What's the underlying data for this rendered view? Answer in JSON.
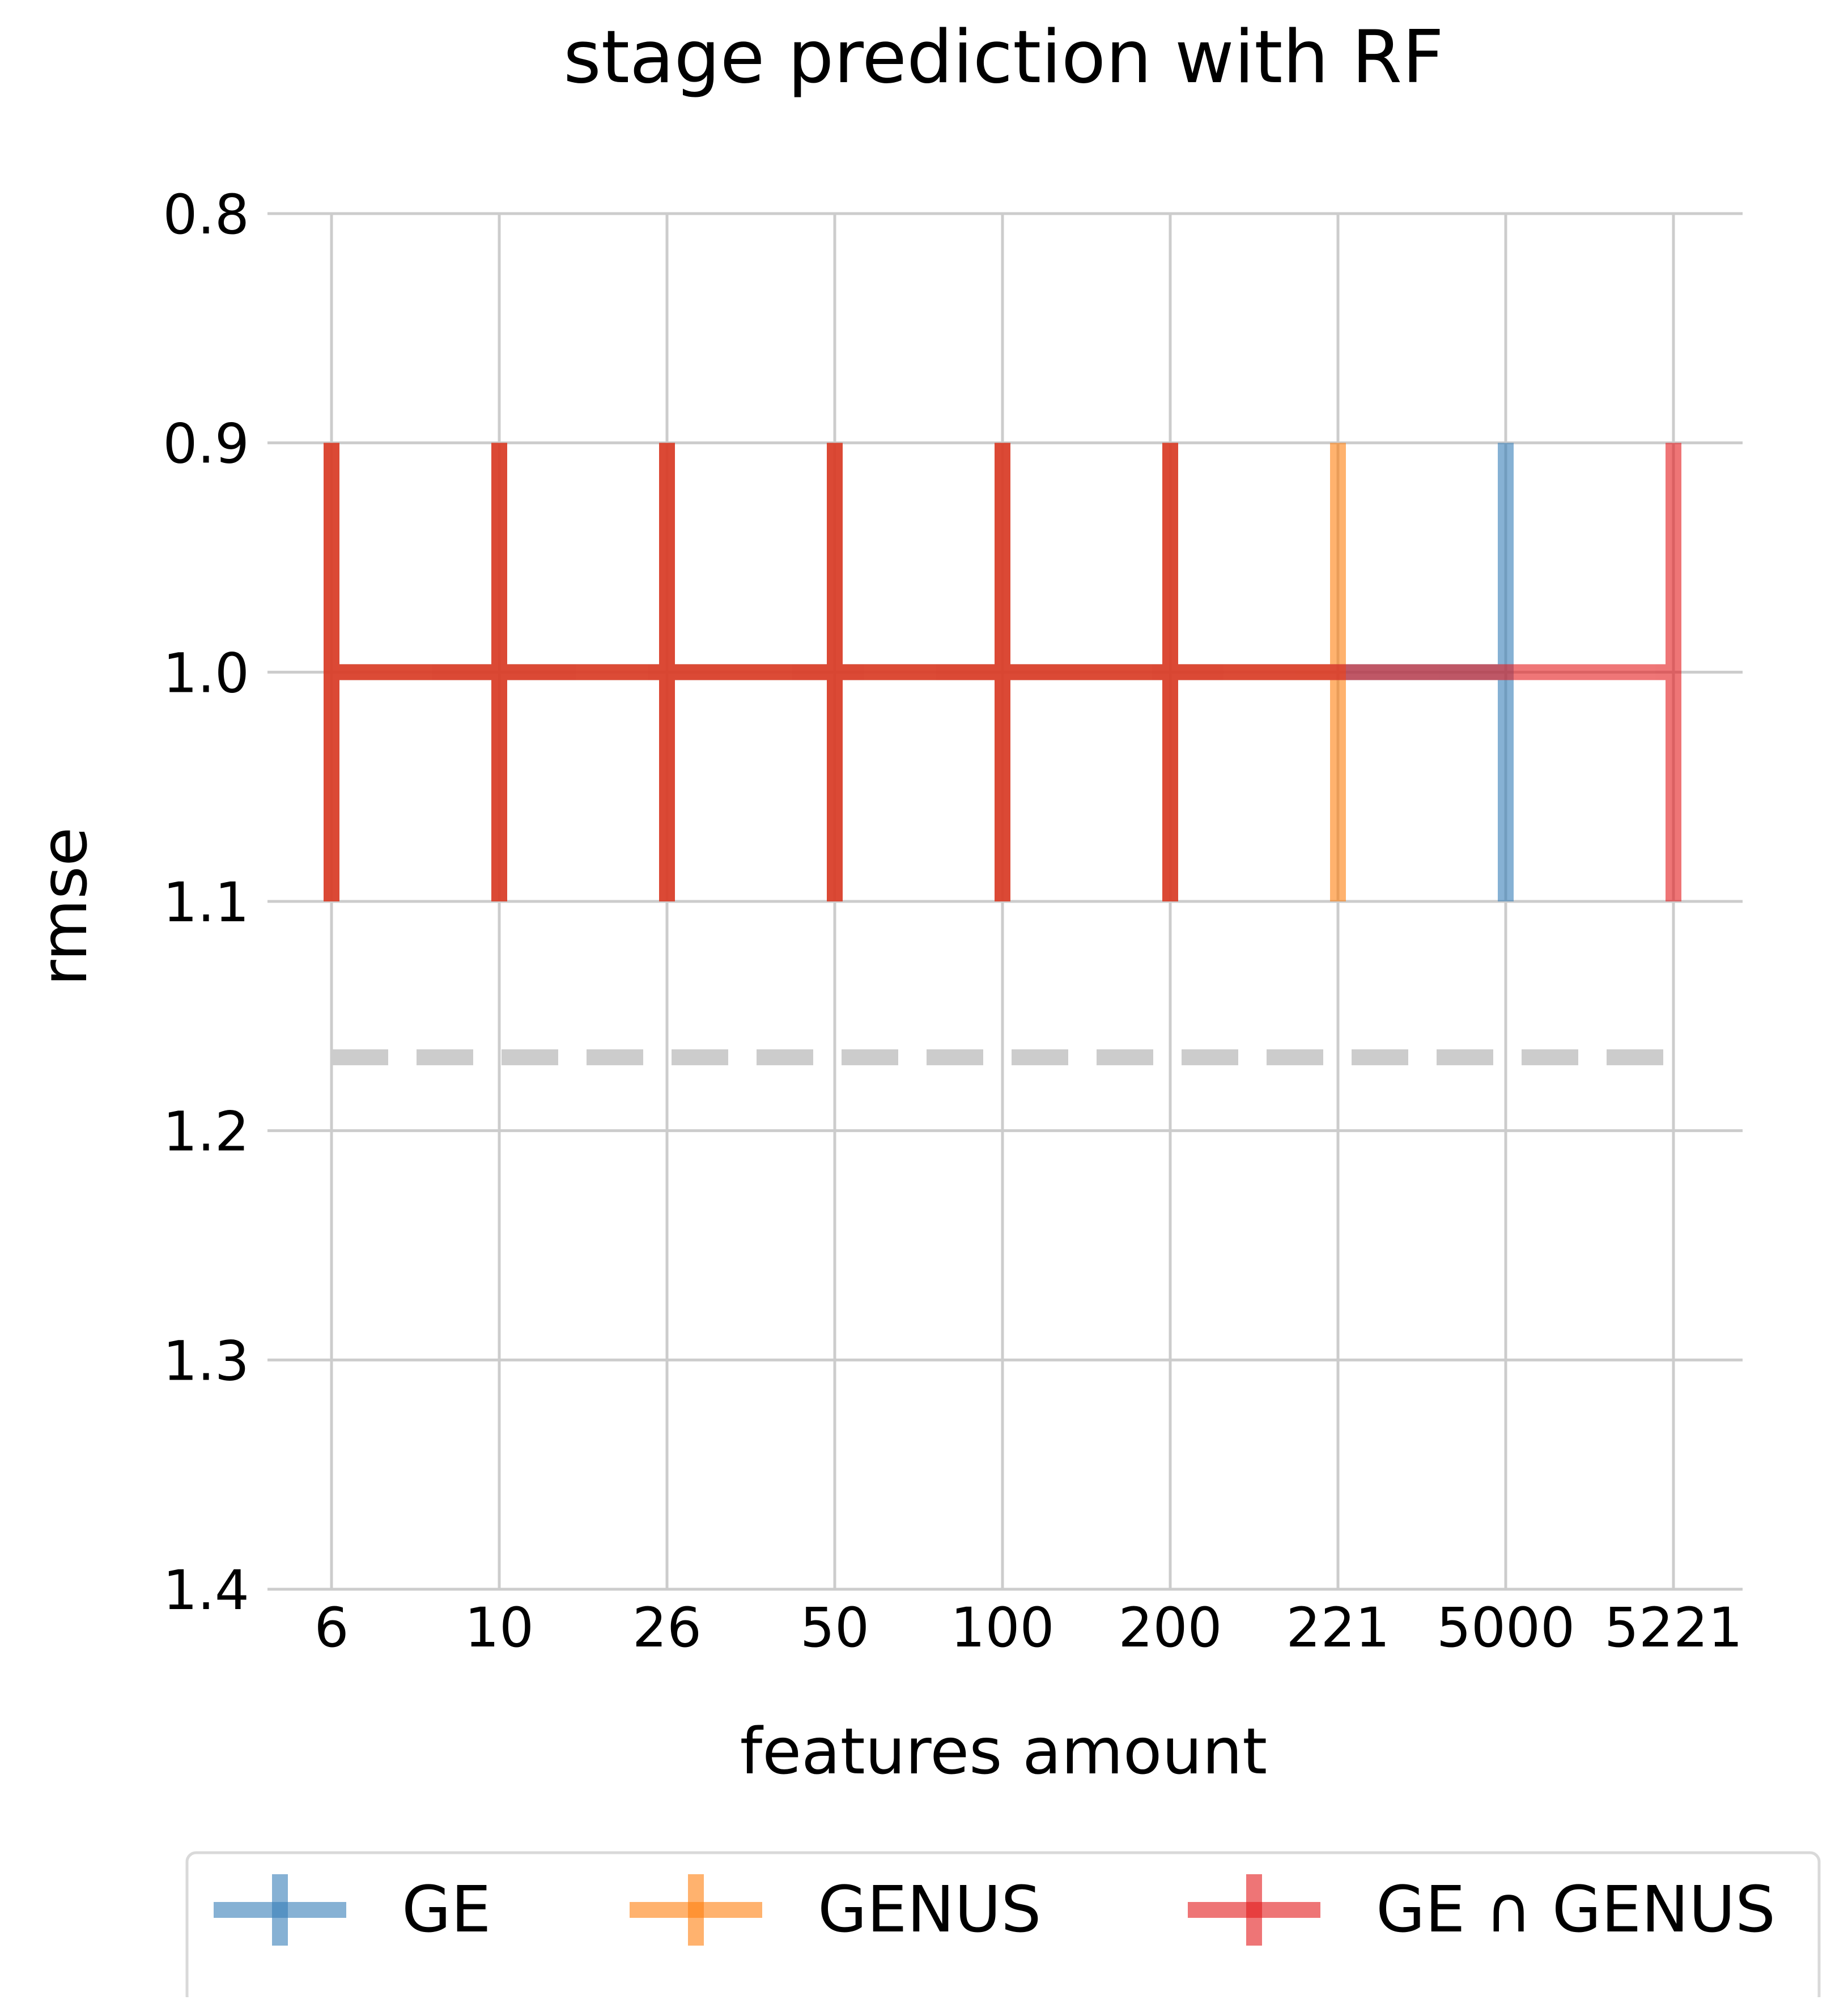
{
  "chart_data": {
    "type": "line",
    "title": "stage prediction with RF",
    "xlabel": "features amount",
    "ylabel": "rmse",
    "categories": [
      "6",
      "10",
      "26",
      "50",
      "100",
      "200",
      "221",
      "5000",
      "5221"
    ],
    "y_ticks": [
      "0.8",
      "0.9",
      "1.0",
      "1.1",
      "1.2",
      "1.3",
      "1.4"
    ],
    "ylim": [
      0.8,
      1.4
    ],
    "y_inverted": true,
    "grid": true,
    "baseline": {
      "value": 1.168,
      "style": "dashed",
      "color": "#cccccc"
    },
    "series": [
      {
        "name": "GE",
        "color": "#377eb8",
        "x": [
          "6",
          "10",
          "26",
          "50",
          "100",
          "200",
          "5000"
        ],
        "values": [
          1.0,
          1.0,
          1.0,
          1.0,
          1.0,
          1.0,
          1.0
        ],
        "error": [
          0.1,
          0.1,
          0.1,
          0.1,
          0.1,
          0.1,
          0.1
        ]
      },
      {
        "name": "GENUS",
        "color": "#ff7f0e",
        "x": [
          "6",
          "10",
          "26",
          "50",
          "100",
          "200",
          "221"
        ],
        "values": [
          1.0,
          1.0,
          1.0,
          1.0,
          1.0,
          1.0,
          1.0
        ],
        "error": [
          0.1,
          0.1,
          0.1,
          0.1,
          0.1,
          0.1,
          0.1
        ]
      },
      {
        "name": "GE ∩ GENUS",
        "color": "#e41a1c",
        "x": [
          "6",
          "10",
          "26",
          "50",
          "100",
          "200",
          "5221"
        ],
        "values": [
          1.0,
          1.0,
          1.0,
          1.0,
          1.0,
          1.0,
          1.0
        ],
        "error": [
          0.1,
          0.1,
          0.1,
          0.1,
          0.1,
          0.1,
          0.1
        ]
      }
    ],
    "legend": {
      "placement": "bottom",
      "entries": [
        "GE",
        "GENUS",
        "GE ∩ GENUS"
      ]
    }
  }
}
